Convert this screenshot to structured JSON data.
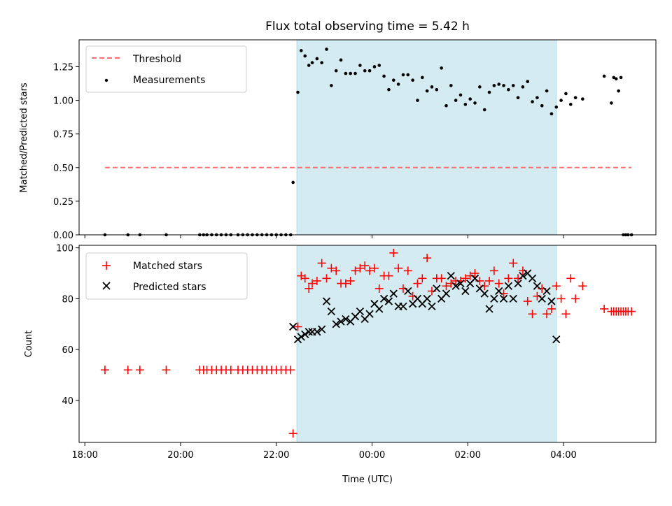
{
  "chart_data": {
    "title": "Flux total observing time = 5.42 h",
    "xlabel": "Time (UTC)",
    "x_units": "hours since 18:00 UTC (Apr-style axis wraps past midnight)",
    "x_ticks": [
      {
        "x": 0,
        "label": "18:00"
      },
      {
        "x": 2,
        "label": "20:00"
      },
      {
        "x": 4,
        "label": "22:00"
      },
      {
        "x": 6,
        "label": "00:00"
      },
      {
        "x": 8,
        "label": "02:00"
      },
      {
        "x": 10,
        "label": "04:00"
      }
    ],
    "xlim": [
      -0.12,
      11.93
    ],
    "shaded_interval": {
      "start": 4.43,
      "end": 9.85,
      "color": "#d4ebf2",
      "edge": "#add8e6"
    },
    "panels": [
      {
        "type": "scatter",
        "ylabel": "Matched/Predicted stars",
        "ylim": [
          0,
          1.45
        ],
        "y_ticks": [
          {
            "y": 0.0,
            "label": "0.00"
          },
          {
            "y": 0.25,
            "label": "0.25"
          },
          {
            "y": 0.5,
            "label": "0.50"
          },
          {
            "y": 0.75,
            "label": "0.75"
          },
          {
            "y": 1.0,
            "label": "1.00"
          },
          {
            "y": 1.25,
            "label": "1.25"
          }
        ],
        "legend": [
          "Threshold",
          "Measurements"
        ],
        "threshold": {
          "name": "Threshold",
          "value": 0.5,
          "x_range": [
            0.42,
            11.42
          ],
          "color": "#ff7070"
        },
        "series": [
          {
            "name": "Measurements",
            "marker": "dot",
            "color": "#000000",
            "x": [
              0.42,
              0.9,
              1.15,
              1.7,
              2.4,
              2.48,
              2.55,
              2.65,
              2.75,
              2.85,
              2.95,
              3.05,
              3.2,
              3.3,
              3.4,
              3.5,
              3.6,
              3.7,
              3.8,
              3.9,
              4.0,
              4.1,
              4.2,
              4.3,
              4.35,
              4.45,
              4.52,
              4.6,
              4.68,
              4.75,
              4.85,
              4.95,
              5.05,
              5.15,
              5.25,
              5.35,
              5.45,
              5.55,
              5.65,
              5.75,
              5.85,
              5.95,
              6.05,
              6.15,
              6.25,
              6.35,
              6.45,
              6.55,
              6.65,
              6.75,
              6.85,
              6.95,
              7.05,
              7.15,
              7.25,
              7.35,
              7.45,
              7.55,
              7.65,
              7.75,
              7.85,
              7.95,
              8.05,
              8.15,
              8.25,
              8.35,
              8.45,
              8.55,
              8.65,
              8.75,
              8.85,
              8.95,
              9.05,
              9.15,
              9.25,
              9.35,
              9.45,
              9.55,
              9.65,
              9.75,
              9.85,
              9.95,
              10.05,
              10.15,
              10.25,
              10.4,
              10.85,
              11.0,
              11.05,
              11.1,
              11.15,
              11.2,
              11.25,
              11.3,
              11.35,
              11.42
            ],
            "y": [
              0,
              0,
              0,
              0,
              0,
              0,
              0,
              0,
              0,
              0,
              0,
              0,
              0,
              0,
              0,
              0,
              0,
              0,
              0,
              0,
              0,
              0,
              0,
              0,
              0.39,
              1.06,
              1.37,
              1.33,
              1.26,
              1.28,
              1.31,
              1.28,
              1.38,
              1.11,
              1.22,
              1.3,
              1.2,
              1.2,
              1.2,
              1.26,
              1.22,
              1.22,
              1.25,
              1.26,
              1.18,
              1.08,
              1.15,
              1.12,
              1.19,
              1.19,
              1.15,
              1.0,
              1.17,
              1.07,
              1.1,
              1.08,
              1.24,
              0.96,
              1.11,
              1.0,
              1.04,
              0.97,
              1.01,
              0.98,
              1.1,
              0.93,
              1.06,
              1.11,
              1.12,
              1.11,
              1.08,
              1.11,
              1.02,
              1.1,
              1.14,
              0.99,
              1.02,
              0.96,
              1.07,
              0.9,
              0.95,
              1.0,
              1.05,
              0.97,
              1.02,
              1.01,
              1.18,
              0.98,
              1.17,
              1.16,
              1.07,
              1.17,
              0,
              0,
              0,
              0
            ]
          }
        ]
      },
      {
        "type": "scatter",
        "ylabel": "Count",
        "ylim": [
          23.5,
          101
        ],
        "y_ticks": [
          {
            "y": 40,
            "label": "40"
          },
          {
            "y": 60,
            "label": "60"
          },
          {
            "y": 80,
            "label": "80"
          },
          {
            "y": 100,
            "label": "100"
          }
        ],
        "legend": [
          "Matched stars",
          "Predicted stars"
        ],
        "series": [
          {
            "name": "Matched stars",
            "marker": "plus",
            "color": "#ff0000",
            "x": [
              0.42,
              0.9,
              1.15,
              1.7,
              2.4,
              2.48,
              2.55,
              2.65,
              2.75,
              2.85,
              2.95,
              3.05,
              3.2,
              3.3,
              3.4,
              3.5,
              3.6,
              3.7,
              3.8,
              3.9,
              4.0,
              4.1,
              4.2,
              4.3,
              4.35,
              4.45,
              4.52,
              4.6,
              4.68,
              4.75,
              4.85,
              4.95,
              5.05,
              5.15,
              5.25,
              5.35,
              5.45,
              5.55,
              5.65,
              5.75,
              5.85,
              5.95,
              6.05,
              6.15,
              6.25,
              6.35,
              6.45,
              6.55,
              6.65,
              6.75,
              6.85,
              6.95,
              7.05,
              7.15,
              7.25,
              7.35,
              7.45,
              7.55,
              7.65,
              7.75,
              7.85,
              7.95,
              8.05,
              8.15,
              8.25,
              8.35,
              8.45,
              8.55,
              8.65,
              8.75,
              8.85,
              8.95,
              9.05,
              9.15,
              9.25,
              9.35,
              9.45,
              9.55,
              9.65,
              9.75,
              9.85,
              9.95,
              10.05,
              10.15,
              10.25,
              10.4,
              10.85,
              11.0,
              11.05,
              11.1,
              11.15,
              11.2,
              11.25,
              11.3,
              11.35,
              11.42
            ],
            "y": [
              52,
              52,
              52,
              52,
              52,
              52,
              52,
              52,
              52,
              52,
              52,
              52,
              52,
              52,
              52,
              52,
              52,
              52,
              52,
              52,
              52,
              52,
              52,
              52,
              27,
              69,
              89,
              88,
              84,
              86,
              87,
              94,
              88,
              92,
              91,
              86,
              86,
              87,
              91,
              92,
              93,
              91,
              92,
              84,
              89,
              89,
              98,
              92,
              84,
              91,
              81,
              86,
              88,
              96,
              83,
              88,
              88,
              85,
              86,
              87,
              87,
              88,
              89,
              90,
              87,
              85,
              87,
              91,
              86,
              82,
              88,
              94,
              88,
              91,
              79,
              74,
              81,
              84,
              74,
              76,
              85,
              80,
              74,
              88,
              80,
              85,
              76,
              75,
              75,
              75,
              75,
              75,
              75,
              75,
              75,
              75
            ]
          },
          {
            "name": "Predicted stars",
            "marker": "x",
            "color": "#000000",
            "x": [
              4.35,
              4.45,
              4.52,
              4.6,
              4.68,
              4.75,
              4.85,
              4.95,
              5.05,
              5.15,
              5.25,
              5.35,
              5.45,
              5.55,
              5.65,
              5.75,
              5.85,
              5.95,
              6.05,
              6.15,
              6.25,
              6.35,
              6.45,
              6.55,
              6.65,
              6.75,
              6.85,
              6.95,
              7.05,
              7.15,
              7.25,
              7.35,
              7.45,
              7.55,
              7.65,
              7.75,
              7.85,
              7.95,
              8.05,
              8.15,
              8.25,
              8.35,
              8.45,
              8.55,
              8.65,
              8.75,
              8.85,
              8.95,
              9.05,
              9.15,
              9.25,
              9.35,
              9.45,
              9.55,
              9.65,
              9.75,
              9.85
            ],
            "y": [
              69,
              64,
              65,
              66,
              67,
              67,
              67,
              68,
              79,
              75,
              70,
              71,
              72,
              71,
              73,
              75,
              72,
              74,
              78,
              76,
              80,
              79,
              82,
              77,
              77,
              83,
              78,
              80,
              78,
              80,
              77,
              84,
              80,
              82,
              89,
              85,
              86,
              83,
              86,
              88,
              84,
              82,
              76,
              80,
              83,
              80,
              85,
              80,
              86,
              89,
              90,
              88,
              85,
              80,
              83,
              79,
              64
            ]
          }
        ]
      }
    ]
  }
}
